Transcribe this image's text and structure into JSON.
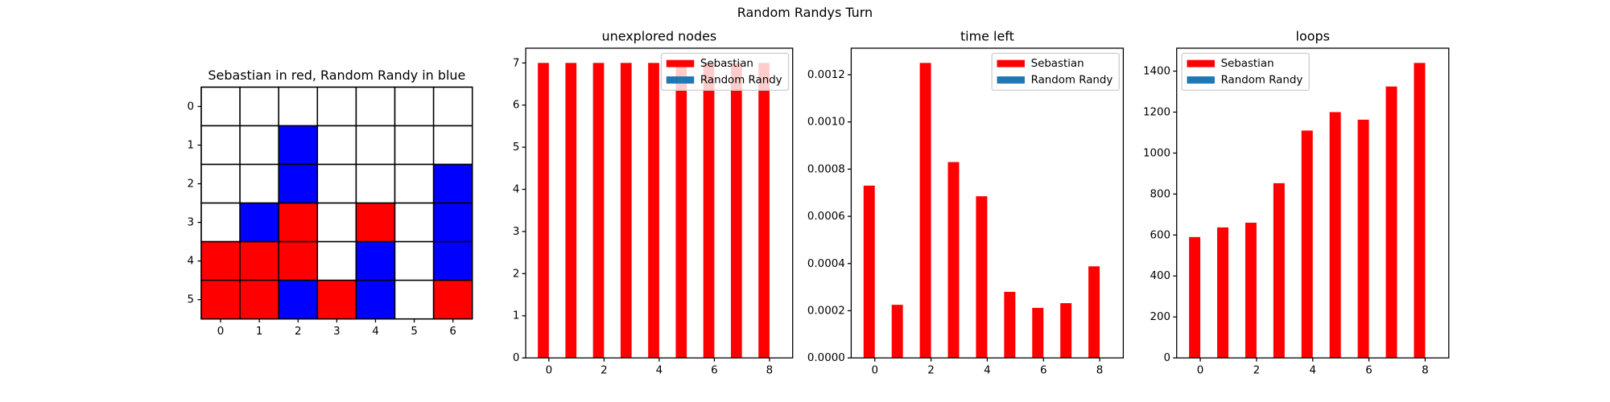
{
  "title": "Random Randys Turn",
  "chart_data": [
    {
      "type": "grid",
      "title": "Sebastian in red, Random Randy in blue",
      "colors": [
        "#ffffff",
        "#ff0000",
        "#0000ff"
      ],
      "values": [
        [
          0,
          0,
          0,
          0,
          0,
          0,
          0
        ],
        [
          0,
          0,
          2,
          0,
          0,
          0,
          0
        ],
        [
          0,
          0,
          2,
          0,
          0,
          0,
          2
        ],
        [
          0,
          2,
          1,
          0,
          1,
          0,
          2
        ],
        [
          1,
          1,
          1,
          0,
          2,
          0,
          2
        ],
        [
          1,
          1,
          2,
          1,
          2,
          0,
          1
        ]
      ],
      "xlim": [
        -0.5,
        6.5
      ],
      "ylim": [
        5.5,
        -0.5
      ],
      "xticks": [
        0,
        1,
        2,
        3,
        4,
        5,
        6
      ],
      "yticks": [
        0,
        1,
        2,
        3,
        4,
        5
      ]
    },
    {
      "type": "bar",
      "title": "unexplored nodes",
      "legend": "upper right",
      "x": [
        0,
        1,
        2,
        3,
        4,
        5,
        6,
        7,
        8
      ],
      "series": [
        {
          "name": "Sebastian",
          "color": "#ff0000",
          "values": [
            7,
            7,
            7,
            7,
            7,
            7,
            7,
            7,
            7
          ]
        },
        {
          "name": "Random Randy",
          "color": "#1f77b4",
          "values": [
            0,
            0,
            0,
            0,
            0,
            0,
            0,
            0,
            0
          ]
        }
      ],
      "xlim": [
        -0.84,
        8.84
      ],
      "ylim": [
        0,
        7.35
      ],
      "xticks": [
        0,
        2,
        4,
        6,
        8
      ],
      "yticks": [
        0,
        1,
        2,
        3,
        4,
        5,
        6,
        7
      ]
    },
    {
      "type": "bar",
      "title": "time left",
      "legend": "upper right",
      "x": [
        0,
        1,
        2,
        3,
        4,
        5,
        6,
        7,
        8
      ],
      "series": [
        {
          "name": "Sebastian",
          "color": "#ff0000",
          "values": [
            0.00073,
            0.000225,
            0.00125,
            0.00083,
            0.000685,
            0.00028,
            0.000212,
            0.000232,
            0.000388
          ]
        },
        {
          "name": "Random Randy",
          "color": "#1f77b4",
          "values": [
            0,
            0,
            0,
            0,
            0,
            0,
            0,
            0,
            0
          ]
        }
      ],
      "xlim": [
        -0.84,
        8.84
      ],
      "ylim": [
        0,
        0.0013125
      ],
      "xticks": [
        0,
        2,
        4,
        6,
        8
      ],
      "yticks": [
        {
          "value": 0,
          "label": "0.0000"
        },
        {
          "value": 0.0002,
          "label": "0.0002"
        },
        {
          "value": 0.0004,
          "label": "0.0004"
        },
        {
          "value": 0.0006,
          "label": "0.0006"
        },
        {
          "value": 0.0008,
          "label": "0.0008"
        },
        {
          "value": 0.001,
          "label": "0.0010"
        },
        {
          "value": 0.0012,
          "label": "0.0012"
        }
      ]
    },
    {
      "type": "bar",
      "title": "loops",
      "legend": "upper left",
      "x": [
        0,
        1,
        2,
        3,
        4,
        5,
        6,
        7,
        8
      ],
      "series": [
        {
          "name": "Sebastian",
          "color": "#ff0000",
          "values": [
            590,
            637,
            660,
            853,
            1110,
            1200,
            1163,
            1325,
            1440
          ]
        },
        {
          "name": "Random Randy",
          "color": "#1f77b4",
          "values": [
            0,
            0,
            0,
            0,
            0,
            0,
            0,
            0,
            0
          ]
        }
      ],
      "xlim": [
        -0.84,
        8.84
      ],
      "ylim": [
        0,
        1512
      ],
      "xticks": [
        0,
        2,
        4,
        6,
        8
      ],
      "yticks": [
        0,
        200,
        400,
        600,
        800,
        1000,
        1200,
        1400
      ]
    }
  ]
}
